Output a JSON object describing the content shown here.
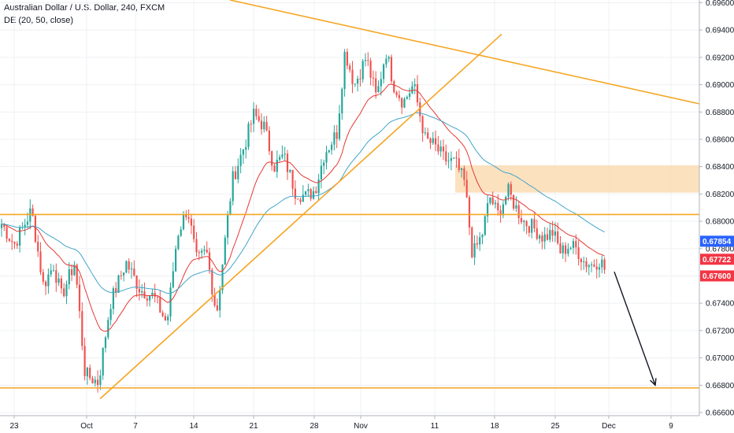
{
  "header": {
    "title": "Australian Dollar / U.S. Dollar, 240, FXCM",
    "indicator": "DE (20, 50, close)"
  },
  "colors": {
    "up": "#26a69a",
    "down": "#ef5350",
    "ema_fast": "#e53935",
    "ema_slow": "#42a5c8",
    "drawings": "#f5a623",
    "zone": "#fcdcb4",
    "arrow": "#131722",
    "grid": "#eef0f3"
  },
  "chart_data": {
    "type": "candlestick",
    "symbol": "AUD/USD",
    "timeframe": "240",
    "ylim": [
      0.6645,
      0.6962
    ],
    "y_ticks": [
      "0.66600",
      "0.66800",
      "0.67000",
      "0.67200",
      "0.67400",
      "0.67600",
      "0.67800",
      "0.68000",
      "0.68200",
      "0.68400",
      "0.68600",
      "0.68800",
      "0.69000",
      "0.69200",
      "0.69400",
      "0.69600"
    ],
    "x_ticks": [
      "23",
      "Oct",
      "7",
      "14",
      "21",
      "28",
      "Nov",
      "11",
      "18",
      "25",
      "Dec",
      "9"
    ],
    "price_badges": [
      {
        "value": "0.67854",
        "color": "#2962ff"
      },
      {
        "value": "0.67722",
        "color": "#f23645"
      },
      {
        "value": "0.67600",
        "color": "#f23645"
      }
    ],
    "anchors": [
      [
        0,
        0.68
      ],
      [
        18,
        0.6783
      ],
      [
        40,
        0.6808
      ],
      [
        55,
        0.6753
      ],
      [
        68,
        0.6768
      ],
      [
        78,
        0.6745
      ],
      [
        95,
        0.677
      ],
      [
        108,
        0.6688
      ],
      [
        125,
        0.6682
      ],
      [
        140,
        0.674
      ],
      [
        160,
        0.677
      ],
      [
        178,
        0.675
      ],
      [
        195,
        0.6745
      ],
      [
        212,
        0.6725
      ],
      [
        225,
        0.679
      ],
      [
        238,
        0.681
      ],
      [
        250,
        0.677
      ],
      [
        262,
        0.6778
      ],
      [
        275,
        0.6732
      ],
      [
        285,
        0.6782
      ],
      [
        295,
        0.683
      ],
      [
        310,
        0.6855
      ],
      [
        322,
        0.6878
      ],
      [
        335,
        0.687
      ],
      [
        348,
        0.684
      ],
      [
        360,
        0.6848
      ],
      [
        375,
        0.6822
      ],
      [
        388,
        0.6818
      ],
      [
        400,
        0.6823
      ],
      [
        412,
        0.685
      ],
      [
        428,
        0.6865
      ],
      [
        438,
        0.6925
      ],
      [
        450,
        0.69
      ],
      [
        465,
        0.692
      ],
      [
        478,
        0.689
      ],
      [
        490,
        0.6925
      ],
      [
        500,
        0.69
      ],
      [
        512,
        0.6887
      ],
      [
        525,
        0.69
      ],
      [
        540,
        0.686
      ],
      [
        552,
        0.6855
      ],
      [
        565,
        0.6845
      ],
      [
        578,
        0.6843
      ],
      [
        590,
        0.6828
      ],
      [
        600,
        0.6775
      ],
      [
        612,
        0.679
      ],
      [
        622,
        0.6818
      ],
      [
        632,
        0.6805
      ],
      [
        645,
        0.6822
      ],
      [
        655,
        0.681
      ],
      [
        665,
        0.68
      ],
      [
        678,
        0.6795
      ],
      [
        690,
        0.6788
      ],
      [
        702,
        0.6792
      ],
      [
        712,
        0.6777
      ],
      [
        722,
        0.6782
      ],
      [
        732,
        0.678
      ],
      [
        742,
        0.677
      ],
      [
        752,
        0.6768
      ],
      [
        762,
        0.6772
      ],
      [
        770,
        0.6762
      ]
    ],
    "drawings": {
      "resistance_trendline": [
        [
          292,
          0.6962
        ],
        [
          888,
          0.6886
        ]
      ],
      "support_trendline": [
        [
          127,
          0.667
        ],
        [
          637,
          0.6937
        ]
      ],
      "horizontal_levels": [
        0.6805,
        0.6678
      ],
      "supply_zone": {
        "x_range": [
          578,
          888
        ],
        "y_range": [
          0.6821,
          0.6841
        ]
      },
      "projection_arrow": [
        [
          780,
          0.6763
        ],
        [
          832,
          0.668
        ]
      ]
    }
  }
}
